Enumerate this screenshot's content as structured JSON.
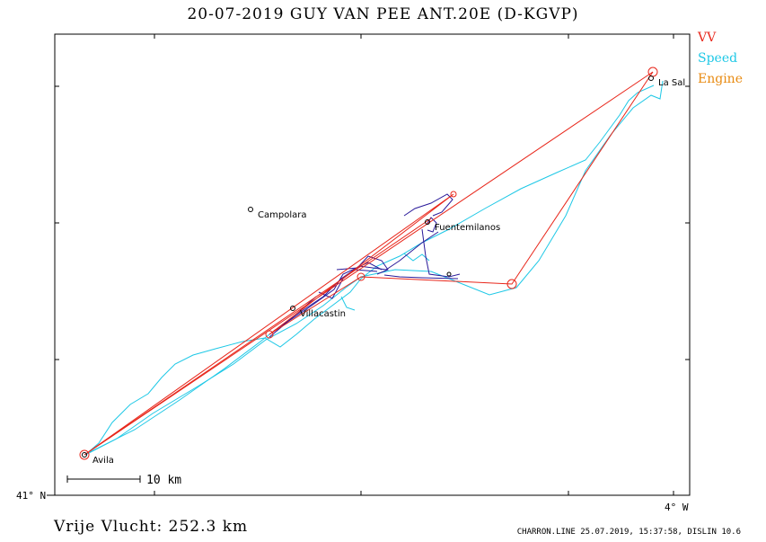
{
  "title": "20-07-2019   GUY VAN PEE   ANT.20E (D-KGVP)",
  "legend": {
    "vv": "VV",
    "speed": "Speed",
    "engine": "Engine"
  },
  "colors": {
    "vv": "#e8261a",
    "speed": "#1ec8e6",
    "engine": "#e88a10",
    "track": "#2a1a9a"
  },
  "axes": {
    "lat_label": "41° N",
    "lon_label": "4° W"
  },
  "scale_bar": {
    "label": "10 km"
  },
  "places": [
    {
      "name": "Avila"
    },
    {
      "name": "La Sal"
    },
    {
      "name": "Campolara"
    },
    {
      "name": "Fuentemilanos"
    },
    {
      "name": "Villacastin"
    }
  ],
  "distance": "Vrije Vlucht:  252.3 km",
  "footer": "CHARRON.LINE 25.07.2019, 15:37:58, DISLIN 10.6"
}
